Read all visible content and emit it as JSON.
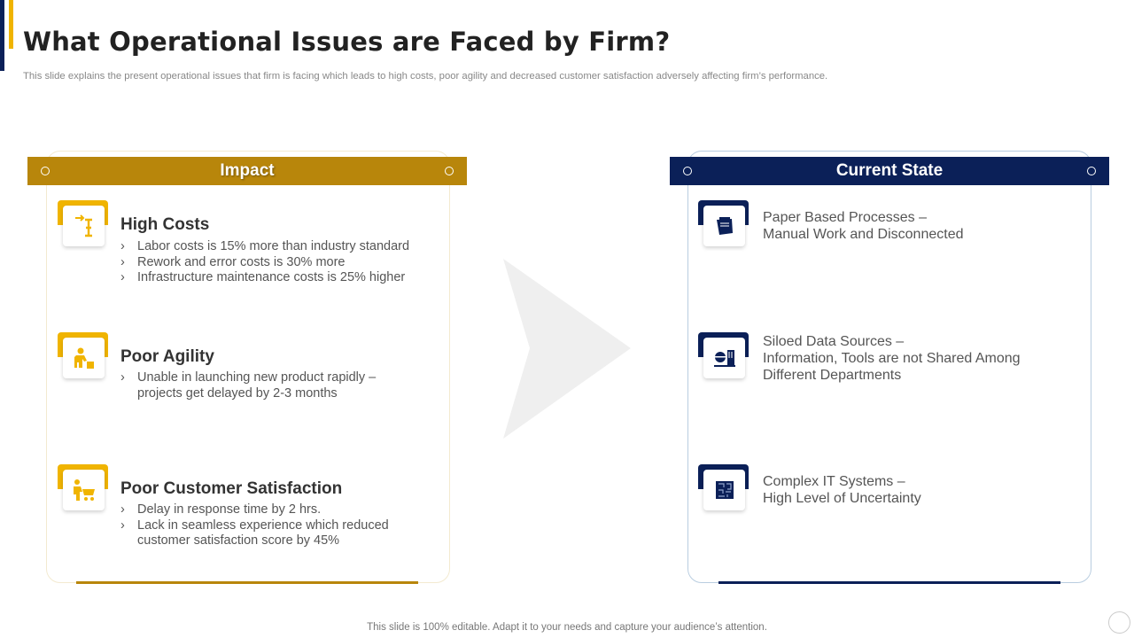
{
  "title": "What Operational Issues are Faced by Firm?",
  "subtitle": "This slide explains the present operational issues that firm is facing which leads to high costs, poor agility and decreased customer satisfaction adversely affecting firm’s performance.",
  "impact": {
    "header": "Impact",
    "items": [
      {
        "icon": "cost-icon",
        "title": "High Costs",
        "bullets": [
          "Labor costs is 15% more than industry standard",
          "Rework and error costs is 30% more",
          "Infrastructure maintenance costs is 25% higher"
        ]
      },
      {
        "icon": "worker-icon",
        "title": "Poor Agility",
        "bullets": [
          "Unable in launching new product rapidly – projects get delayed by 2-3 months"
        ]
      },
      {
        "icon": "customer-cart-icon",
        "title": "Poor Customer Satisfaction",
        "bullets": [
          "Delay in response time by 2 hrs.",
          "Lack in seamless experience which reduced customer satisfaction score by 45%"
        ]
      }
    ]
  },
  "current": {
    "header": "Current State",
    "items": [
      {
        "icon": "documents-icon",
        "line1": "Paper Based Processes –",
        "line2": "Manual  Work and Disconnected"
      },
      {
        "icon": "data-silo-icon",
        "line1": "Siloed Data Sources –",
        "line2": "Information,  Tools are not Shared Among Different  Departments"
      },
      {
        "icon": "maze-icon",
        "line1": "Complex IT  Systems –",
        "line2": "High Level  of Uncertainty"
      }
    ]
  },
  "bullet_glyph": "›",
  "footer": "This slide is 100% editable. Adapt it to your needs and capture your audience’s attention.",
  "colors": {
    "gold": "#b8860b",
    "navy": "#0b2058",
    "accent": "#f0b400"
  }
}
